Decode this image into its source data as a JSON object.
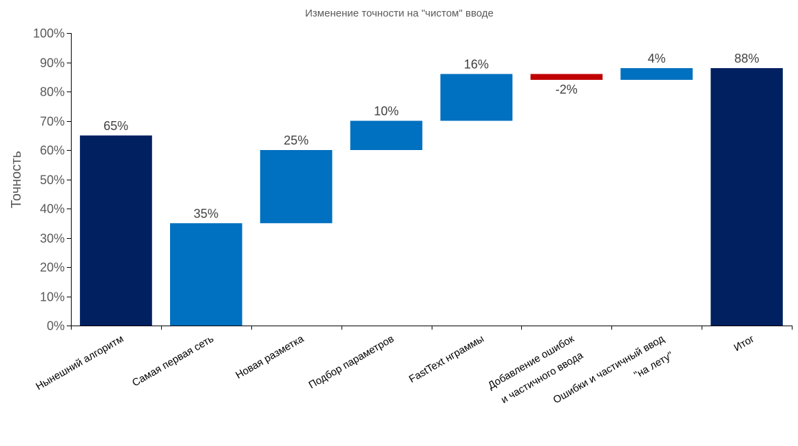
{
  "chart_data": {
    "type": "bar",
    "subtype": "waterfall",
    "title": "Изменение точности на \"чистом\" вводе",
    "ylabel": "Точность",
    "xlabel": "",
    "ylim": [
      0,
      100
    ],
    "yticks": [
      "0%",
      "10%",
      "20%",
      "30%",
      "40%",
      "50%",
      "60%",
      "70%",
      "80%",
      "90%",
      "100%"
    ],
    "grid": false,
    "legend": "none",
    "categories": [
      [
        "Нынешний алгоритм"
      ],
      [
        "Самая первая сеть"
      ],
      [
        "Новая разметка"
      ],
      [
        "Подбор параметров"
      ],
      [
        "FastText нграммы"
      ],
      [
        "Добавление ошибок",
        "и частичного ввода"
      ],
      [
        "Ошибки и частичный ввод",
        "\"на лету\""
      ],
      [
        "Итог"
      ]
    ],
    "bars": [
      {
        "label": "65%",
        "start": 0,
        "end": 65,
        "kind": "total"
      },
      {
        "label": "35%",
        "start": 0,
        "end": 35,
        "kind": "increase"
      },
      {
        "label": "25%",
        "start": 35,
        "end": 60,
        "kind": "increase"
      },
      {
        "label": "10%",
        "start": 60,
        "end": 70,
        "kind": "increase"
      },
      {
        "label": "16%",
        "start": 70,
        "end": 86,
        "kind": "increase"
      },
      {
        "label": "-2%",
        "start": 86,
        "end": 84,
        "kind": "decrease"
      },
      {
        "label": "4%",
        "start": 84,
        "end": 88,
        "kind": "increase"
      },
      {
        "label": "88%",
        "start": 0,
        "end": 88,
        "kind": "total"
      }
    ],
    "colors": {
      "total": "#002060",
      "increase": "#0070C0",
      "decrease": "#C00000"
    }
  }
}
